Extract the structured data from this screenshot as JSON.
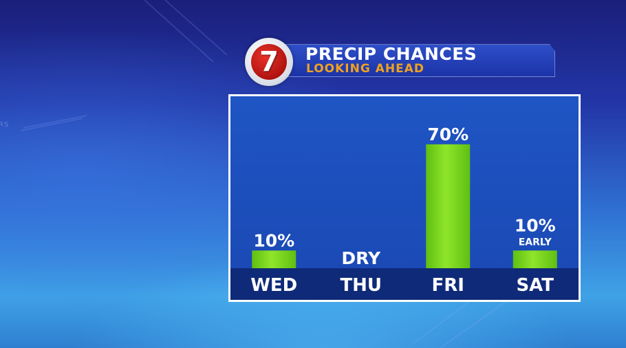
{
  "header": {
    "title": "PRECIP CHANCES",
    "subtitle": "LOOKING AHEAD",
    "logo_text": "7",
    "logo_icon": "channel-7-logo"
  },
  "colors": {
    "bar": "#8fe52a",
    "bar_band": "#0f2a78",
    "panel_border": "#ffffff",
    "subtitle": "#f0a21d"
  },
  "chart_data": {
    "type": "bar",
    "title": "PRECIP CHANCES",
    "categories": [
      "WED",
      "THU",
      "FRI",
      "SAT"
    ],
    "values": [
      10,
      0,
      70,
      10
    ],
    "value_labels": [
      "10%",
      "DRY",
      "70%",
      "10%"
    ],
    "notes": [
      "",
      "",
      "",
      "EARLY"
    ],
    "ylim": [
      0,
      100
    ],
    "grid": false,
    "legend": "none"
  }
}
